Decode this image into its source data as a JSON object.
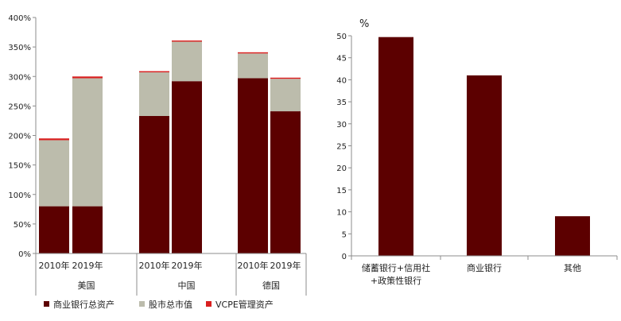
{
  "colors": {
    "commercial_bank_assets": "#5c0000",
    "stock_market_cap": "#bcbcac",
    "vcpe_assets": "#d92020",
    "axis": "#8c8c8c"
  },
  "chart_data": [
    {
      "type": "bar",
      "stacked": true,
      "ylim": [
        0,
        400
      ],
      "yticks": [
        0,
        50,
        100,
        150,
        200,
        250,
        300,
        350,
        400
      ],
      "ytick_labels": [
        "0%",
        "50%",
        "100%",
        "150%",
        "200%",
        "250%",
        "300%",
        "350%",
        "400%"
      ],
      "groups": [
        {
          "label": "美国",
          "categories": [
            "2010年",
            "2019年"
          ]
        },
        {
          "label": "中国",
          "categories": [
            "2010年",
            "2019年"
          ]
        },
        {
          "label": "德国",
          "categories": [
            "2010年",
            "2019年"
          ]
        }
      ],
      "series": [
        {
          "name": "商业银行总资产",
          "values": [
            80,
            80,
            233,
            292,
            297,
            241
          ]
        },
        {
          "name": "股市总市值",
          "values": [
            112,
            217,
            74,
            67,
            42,
            55
          ]
        },
        {
          "name": "VCPE管理资产",
          "values": [
            3,
            3,
            2,
            2,
            2,
            2
          ]
        }
      ],
      "legend_position": "bottom"
    },
    {
      "type": "bar",
      "ylabel": "%",
      "ylim": [
        0,
        50
      ],
      "yticks": [
        0,
        5,
        10,
        15,
        20,
        25,
        30,
        35,
        40,
        45,
        50
      ],
      "categories": [
        [
          "储蓄银行+信用社",
          "+政策性银行"
        ],
        [
          "商业银行"
        ],
        [
          "其他"
        ]
      ],
      "values": [
        49.7,
        41,
        9
      ]
    }
  ]
}
